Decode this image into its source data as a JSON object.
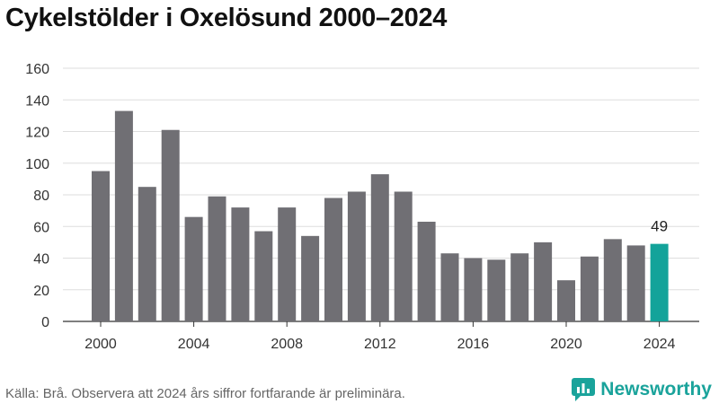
{
  "title": "Cykelstölder i Oxelösund 2000–2024",
  "source": "Källa: Brå. Observera att 2024 års siffror fortfarande är preliminära.",
  "brand": {
    "name": "Newsworthy",
    "icon": "bar-chart-logo-icon"
  },
  "colors": {
    "bar": "#706f74",
    "highlight": "#13a39a",
    "grid": "#dedede",
    "brand": "#1aa39b"
  },
  "chart_data": {
    "type": "bar",
    "title": "Cykelstölder i Oxelösund 2000–2024",
    "xlabel": "",
    "ylabel": "",
    "categories": [
      2000,
      2001,
      2002,
      2003,
      2004,
      2005,
      2006,
      2007,
      2008,
      2009,
      2010,
      2011,
      2012,
      2013,
      2014,
      2015,
      2016,
      2017,
      2018,
      2019,
      2020,
      2021,
      2022,
      2023,
      2024
    ],
    "values": [
      95,
      133,
      85,
      121,
      66,
      79,
      72,
      57,
      72,
      54,
      78,
      82,
      93,
      82,
      63,
      43,
      40,
      39,
      43,
      50,
      26,
      41,
      52,
      48,
      49
    ],
    "ylim": [
      0,
      160
    ],
    "yticks": [
      0,
      20,
      40,
      60,
      80,
      100,
      120,
      140,
      160
    ],
    "xticks": [
      "2000",
      "2004",
      "2008",
      "2012",
      "2016",
      "2020",
      "2024"
    ],
    "highlight": {
      "category": 2024,
      "label": "49"
    },
    "grid": true,
    "legend": "none"
  }
}
